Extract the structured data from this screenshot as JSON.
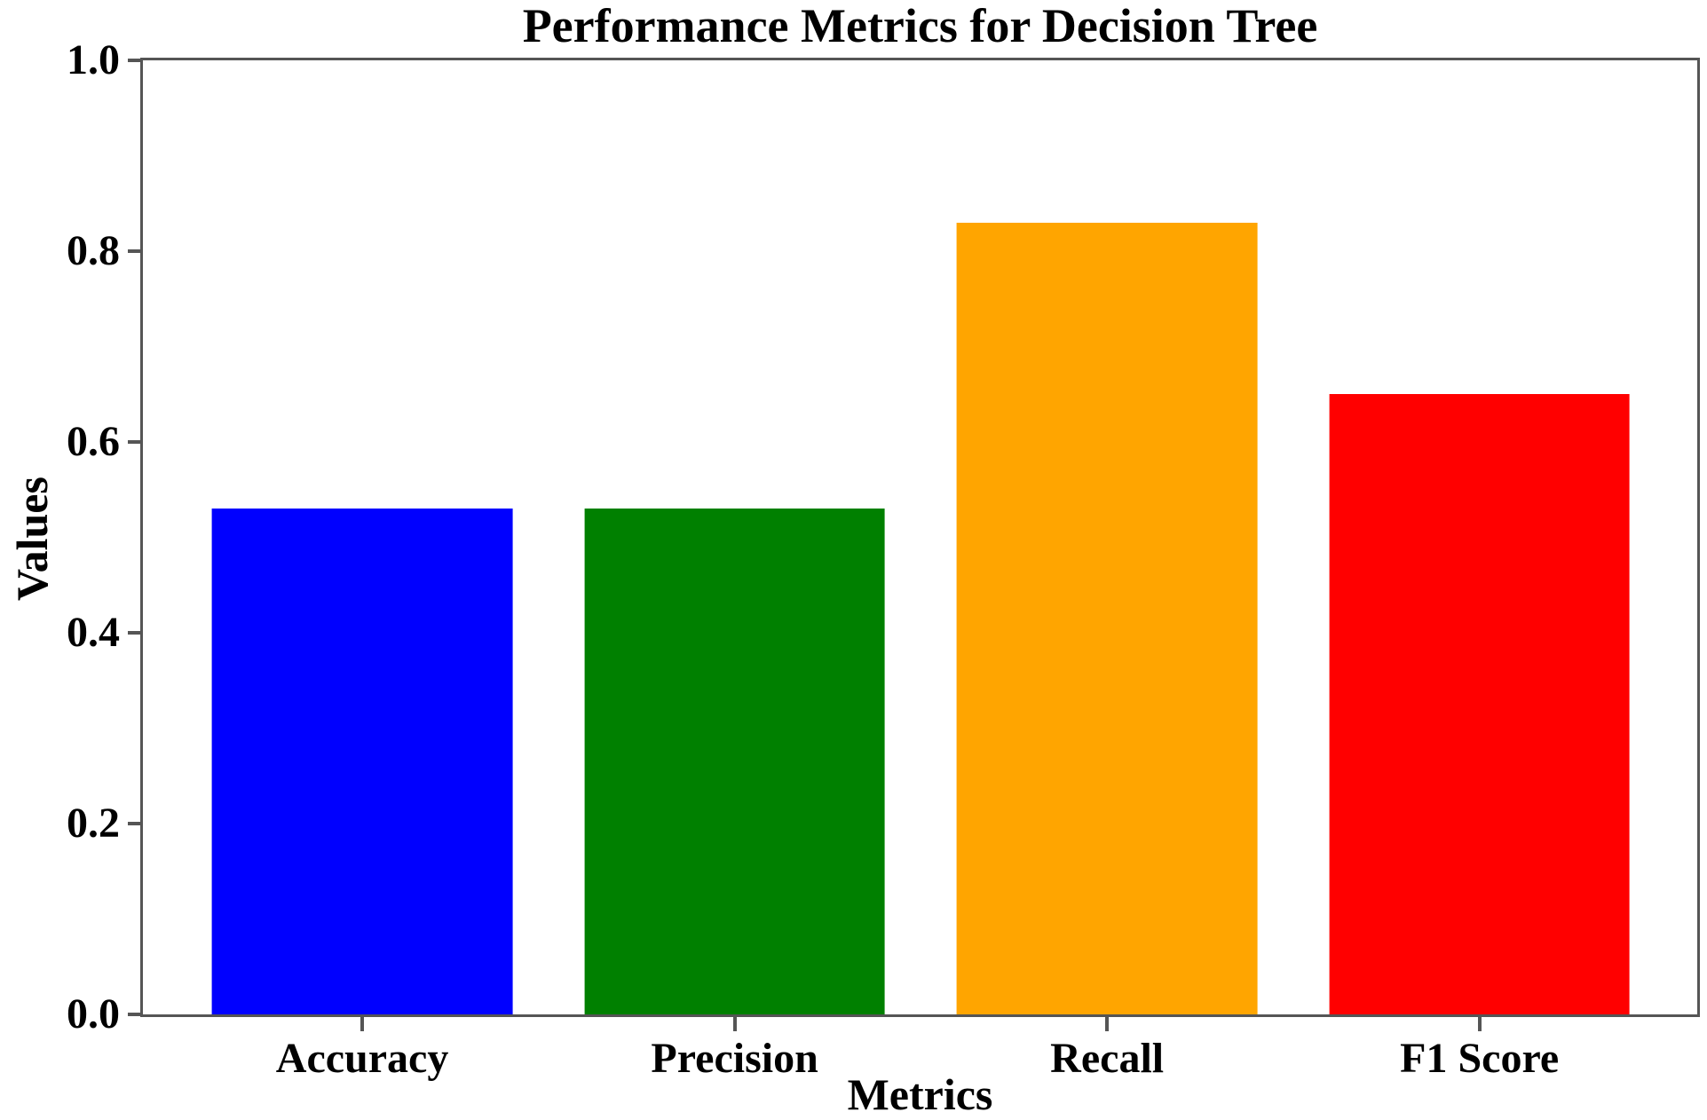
{
  "chart_data": {
    "type": "bar",
    "title": "Performance Metrics for Decision Tree",
    "xlabel": "Metrics",
    "ylabel": "Values",
    "categories": [
      "Accuracy",
      "Precision",
      "Recall",
      "F1 Score"
    ],
    "values": [
      0.53,
      0.53,
      0.83,
      0.65
    ],
    "bar_colors": [
      "#0000ff",
      "#008000",
      "#ffa500",
      "#ff0000"
    ],
    "ylim": [
      0.0,
      1.0
    ],
    "ytick_labels": [
      "0.0",
      "0.2",
      "0.4",
      "0.6",
      "0.8",
      "1.0"
    ],
    "grid": false,
    "legend": "none",
    "spine_color": "#555555",
    "text_color": "#000000"
  }
}
